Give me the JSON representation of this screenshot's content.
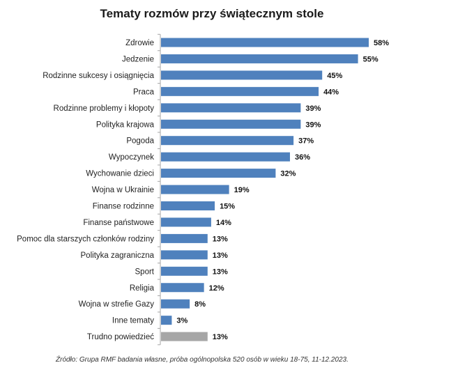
{
  "chart_data": {
    "type": "bar",
    "orientation": "horizontal",
    "title": "Tematy rozmów przy świątecznym stole",
    "xlabel": "",
    "ylabel": "",
    "xlim": [
      0,
      60
    ],
    "grid": false,
    "legend": "none",
    "value_suffix": "%",
    "categories": [
      "Zdrowie",
      "Jedzenie",
      "Rodzinne sukcesy i osiągnięcia",
      "Praca",
      "Rodzinne problemy i kłopoty",
      "Polityka krajowa",
      "Pogoda",
      "Wypoczynek",
      "Wychowanie dzieci",
      "Wojna w Ukrainie",
      "Finanse rodzinne",
      "Finanse państwowe",
      "Pomoc dla starszych członków rodziny",
      "Polityka zagraniczna",
      "Sport",
      "Religia",
      "Wojna w strefie Gazy",
      "Inne tematy",
      "Trudno powiedzieć"
    ],
    "values": [
      58,
      55,
      45,
      44,
      39,
      39,
      37,
      36,
      32,
      19,
      15,
      14,
      13,
      13,
      13,
      12,
      8,
      3,
      13
    ],
    "colors": {
      "bar": "#4f81bd",
      "bar_highlight": "#a6a6a6",
      "axis": "#a6a6a6"
    },
    "highlight_categories": [
      "Trudno powiedzieć"
    ],
    "source": "Źródło: Grupa RMF badania własne, próba ogólnopolska 520 osób w wieku 18-75, 11-12.2023."
  }
}
